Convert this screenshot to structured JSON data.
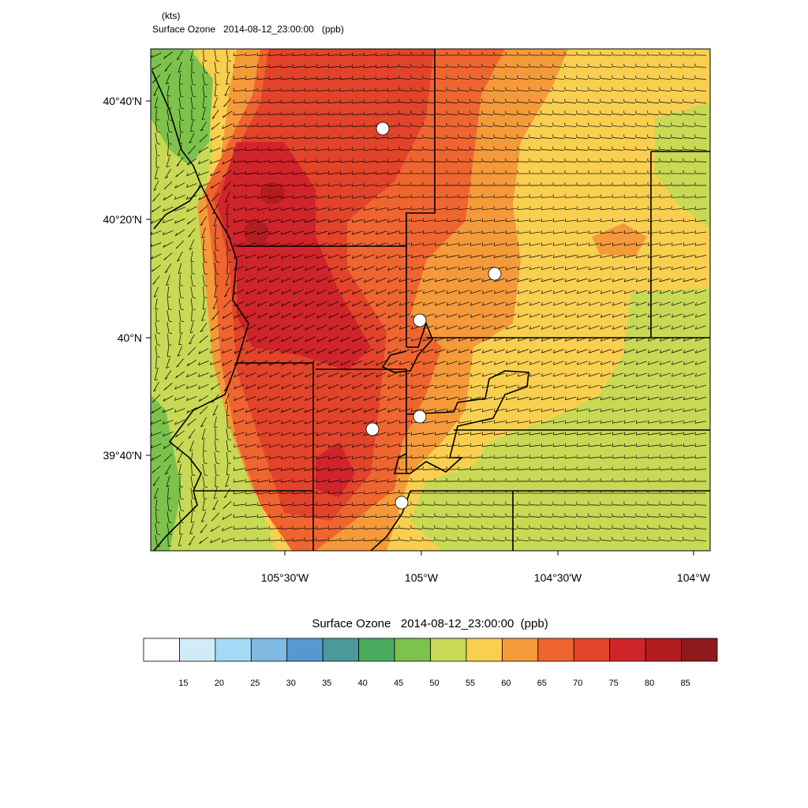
{
  "header": {
    "units": "(kts)",
    "title": "Surface Ozone   2014-08-12_23:00:00   (ppb)"
  },
  "map": {
    "lat_labels": [
      "40°40'N",
      "40°20'N",
      "40°N",
      "39°40'N"
    ],
    "lon_labels": [
      "105°30'W",
      "105°W",
      "104°30'W",
      "104°W"
    ]
  },
  "colorbar": {
    "title": "Surface Ozone   2014-08-12_23:00:00  (ppb)",
    "labels": [
      15,
      20,
      25,
      30,
      35,
      40,
      45,
      50,
      55,
      60,
      65,
      70,
      75,
      80,
      85
    ],
    "colors": [
      "#ffffff",
      "#d1ecf8",
      "#a6d9f5",
      "#80b9e2",
      "#5698d0",
      "#4a9a9b",
      "#4aab5f",
      "#7cc24b",
      "#c8d955",
      "#f9cf50",
      "#f59a3a",
      "#ef6530",
      "#e2432b",
      "#d0242b",
      "#b21d22",
      "#8f1a1b"
    ]
  }
}
